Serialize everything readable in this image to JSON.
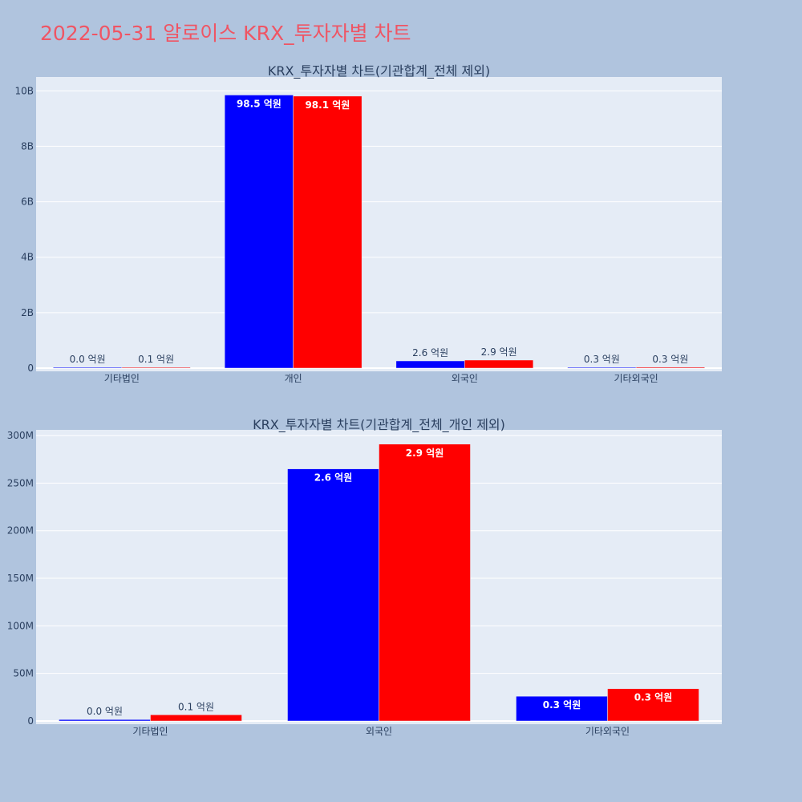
{
  "page_title": "2022-05-31 알로이스 KRX_투자자별 차트",
  "colors": {
    "background": "#b0c4de",
    "plot_background": "#e5ecf6",
    "grid": "#ffffff",
    "title": "#ef5564",
    "text": "#2a3f5f",
    "series_a": "#0000ff",
    "series_b": "#ff0000"
  },
  "chart_data": [
    {
      "type": "bar",
      "title": "KRX_투자자별 차트(기관합계_전체 제외)",
      "categories": [
        "기타법인",
        "개인",
        "외국인",
        "기타외국인"
      ],
      "series": [
        {
          "color": "#0000ff",
          "values": [
            2000000,
            9850000000,
            260000000,
            25000000
          ],
          "labels": [
            "0.0 억원",
            "98.5 억원",
            "2.6 억원",
            "0.3 억원"
          ]
        },
        {
          "color": "#ff0000",
          "values": [
            6000000,
            9810000000,
            290000000,
            33000000
          ],
          "labels": [
            "0.1 억원",
            "98.1 억원",
            "2.9 억원",
            "0.3 억원"
          ]
        }
      ],
      "yticks": [
        0,
        2000000000,
        4000000000,
        6000000000,
        8000000000,
        10000000000
      ],
      "ytick_labels": [
        "0",
        "2B",
        "4B",
        "6B",
        "8B",
        "10B"
      ],
      "ylim": [
        0,
        10500000000
      ],
      "xlabel": "",
      "ylabel": "",
      "grid": true
    },
    {
      "type": "bar",
      "title": "KRX_투자자별 차트(기관합계_전체_개인 제외)",
      "categories": [
        "기타법인",
        "외국인",
        "기타외국인"
      ],
      "series": [
        {
          "color": "#0000ff",
          "values": [
            1500000,
            265000000,
            26000000
          ],
          "labels": [
            "0.0 억원",
            "2.6 억원",
            "0.3 억원"
          ]
        },
        {
          "color": "#ff0000",
          "values": [
            6500000,
            291000000,
            34000000
          ],
          "labels": [
            "0.1 억원",
            "2.9 억원",
            "0.3 억원"
          ]
        }
      ],
      "yticks": [
        0,
        50000000,
        100000000,
        150000000,
        200000000,
        250000000,
        300000000
      ],
      "ytick_labels": [
        "0",
        "50M",
        "100M",
        "150M",
        "200M",
        "250M",
        "300M"
      ],
      "ylim": [
        0,
        306000000
      ],
      "xlabel": "",
      "ylabel": "",
      "grid": true
    }
  ]
}
